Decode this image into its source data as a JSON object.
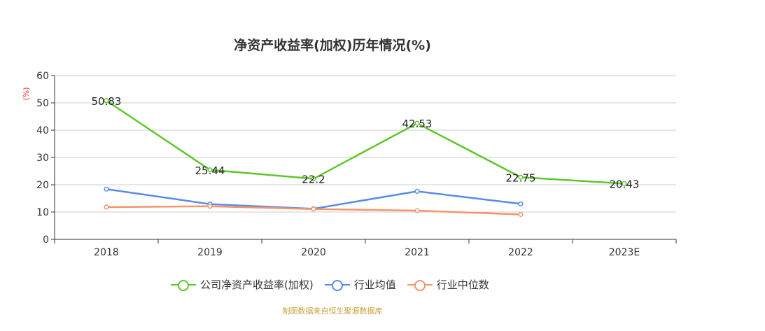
{
  "chart_data": {
    "type": "line",
    "title": "净资产收益率(加权)历年情况(%)",
    "ylabel": "(%)",
    "xlabel": "",
    "categories": [
      "2018",
      "2019",
      "2020",
      "2021",
      "2022",
      "2023E"
    ],
    "ylim": [
      0,
      60
    ],
    "yticks": [
      0,
      10,
      20,
      30,
      40,
      50,
      60
    ],
    "grid": true,
    "legend_position": "bottom",
    "series": [
      {
        "name": "公司净资产收益率(加权)",
        "color": "#5fc62b",
        "values": [
          50.83,
          25.44,
          22.2,
          42.53,
          22.75,
          20.43
        ],
        "labels": [
          "50.83",
          "25.44",
          "22.2",
          "42.53",
          "22.75",
          "20.43"
        ]
      },
      {
        "name": "行业均值",
        "color": "#5b8ae6",
        "values": [
          18.4,
          12.9,
          11.2,
          17.6,
          13.0,
          null
        ]
      },
      {
        "name": "行业中位数",
        "color": "#f4956b",
        "values": [
          11.8,
          12.1,
          11.1,
          10.5,
          9.1,
          null
        ]
      }
    ]
  },
  "source_note": "制图数据来自恒生聚源数据库"
}
